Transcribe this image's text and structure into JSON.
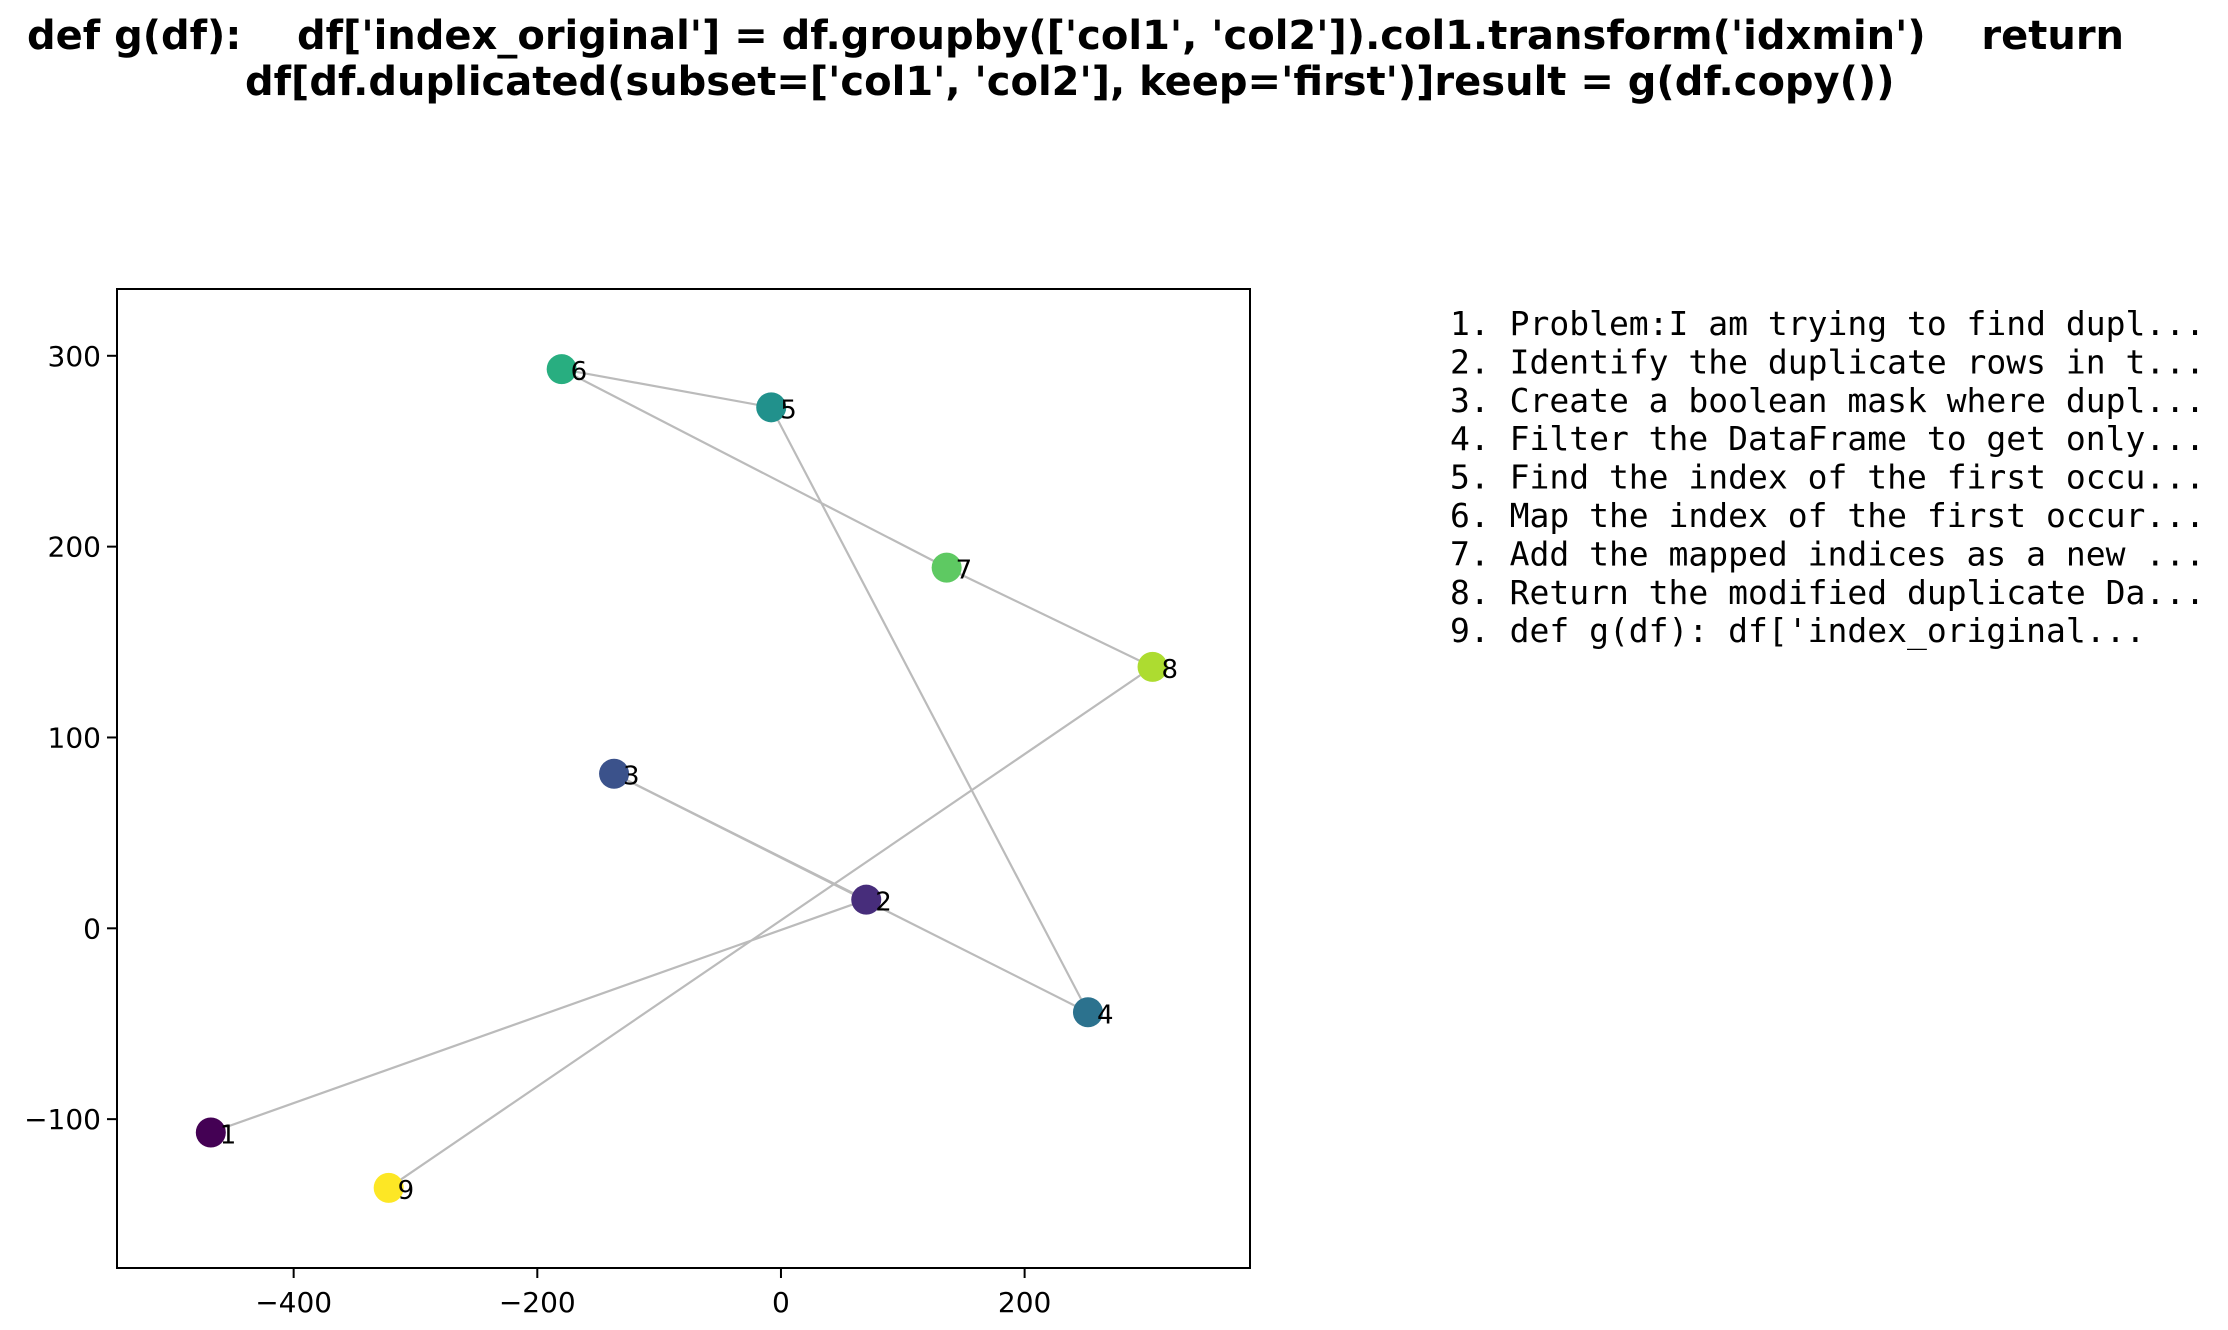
{
  "chart_data": {
    "type": "scatter",
    "title_lines": [
      "def g(df):    df['index_original'] = df.groupby(['col1', 'col2']).col1.transform('idxmin')    return",
      "df[df.duplicated(subset=['col1', 'col2'], keep='first')]result = g(df.copy())"
    ],
    "xlim": [
      -545,
      385
    ],
    "ylim": [
      -178,
      335
    ],
    "xticks": [
      -400,
      -200,
      0,
      200
    ],
    "yticks": [
      -100,
      0,
      100,
      200,
      300
    ],
    "xtick_labels": [
      "−400",
      "−200",
      "0",
      "200"
    ],
    "ytick_labels": [
      "−100",
      "0",
      "100",
      "200",
      "300"
    ],
    "grid": false,
    "connect_points_in_order": true,
    "line_color": "#bbbbbb",
    "points": [
      {
        "label": "1",
        "x": -468,
        "y": -107,
        "color": "#440154"
      },
      {
        "label": "2",
        "x": 70,
        "y": 15,
        "color": "#472d7b"
      },
      {
        "label": "3",
        "x": -137,
        "y": 81,
        "color": "#3b528b"
      },
      {
        "label": "4",
        "x": 252,
        "y": -44,
        "color": "#2c728e"
      },
      {
        "label": "5",
        "x": -8,
        "y": 273,
        "color": "#21918c"
      },
      {
        "label": "6",
        "x": -180,
        "y": 293,
        "color": "#28ae80"
      },
      {
        "label": "7",
        "x": 136,
        "y": 189,
        "color": "#5ec962"
      },
      {
        "label": "8",
        "x": 305,
        "y": 137,
        "color": "#addc30"
      },
      {
        "label": "9",
        "x": -322,
        "y": -136,
        "color": "#fde725"
      }
    ],
    "legend_placement": "right",
    "legend_lines": [
      "1. Problem:I am trying to find dupl...",
      "2. Identify the duplicate rows in t...",
      "3. Create a boolean mask where dupl...",
      "4. Filter the DataFrame to get only...",
      "5. Find the index of the first occu...",
      "6. Map the index of the first occur...",
      "7. Add the mapped indices as a new ...",
      "8. Return the modified duplicate Da...",
      "9. def g(df):    df['index_original..."
    ]
  }
}
